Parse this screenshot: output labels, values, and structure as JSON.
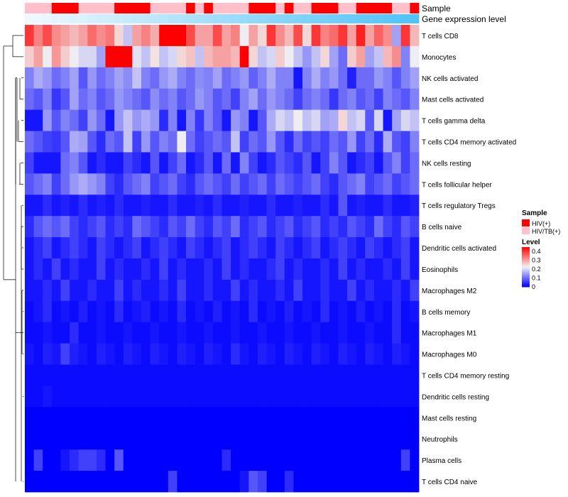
{
  "chart_data": {
    "type": "heatmap",
    "title": "",
    "annotation_labels": {
      "sample": "Sample",
      "gene_expression": "Gene expression level"
    },
    "rows": [
      "T cells CD8",
      "Monocytes",
      "NK cells activated",
      "Mast cells activated",
      "T cells gamma delta",
      "T cells CD4 memory activated",
      "NK cells resting",
      "T cells follicular helper",
      "T cells regulatory  Tregs",
      "B cells naive",
      "Dendritic cells activated",
      "Eosinophils",
      "Macrophages M2",
      "B cells memory",
      "Macrophages M1",
      "Macrophages M0",
      "T cells CD4 memory resting",
      "Dendritic cells resting",
      "Mast cells resting",
      "Neutrophils",
      "Plasma cells",
      "T cells CD4 naive"
    ],
    "n_samples": 44,
    "sample_groups": [
      "HIV/TB(+)",
      "HIV/TB(+)",
      "HIV/TB(+)",
      "HIV(+)",
      "HIV(+)",
      "HIV(+)",
      "HIV/TB(+)",
      "HIV/TB(+)",
      "HIV/TB(+)",
      "HIV/TB(+)",
      "HIV(+)",
      "HIV(+)",
      "HIV(+)",
      "HIV(+)",
      "HIV/TB(+)",
      "HIV/TB(+)",
      "HIV/TB(+)",
      "HIV/TB(+)",
      "HIV(+)",
      "HIV/TB(+)",
      "HIV(+)",
      "HIV/TB(+)",
      "HIV/TB(+)",
      "HIV/TB(+)",
      "HIV/TB(+)",
      "HIV(+)",
      "HIV(+)",
      "HIV(+)",
      "HIV/TB(+)",
      "HIV(+)",
      "HIV/TB(+)",
      "HIV/TB(+)",
      "HIV(+)",
      "HIV(+)",
      "HIV(+)",
      "HIV/TB(+)",
      "HIV/TB(+)",
      "HIV(+)",
      "HIV(+)",
      "HIV(+)",
      "HIV(+)",
      "HIV/TB(+)",
      "HIV/TB(+)",
      "HIV(+)"
    ],
    "expression_gradient": [
      "#f0f8ff",
      "#4fc3f7"
    ],
    "color_scale": {
      "low": "#0000ff",
      "mid": "#f2f2f2",
      "high": "#ff0000",
      "range": [
        0,
        0.45
      ]
    },
    "legend": {
      "sample_title": "Sample",
      "sample_items": [
        {
          "label": "HIV(+)",
          "color": "#ff0000"
        },
        {
          "label": "HIV/TB(+)",
          "color": "#ffc0cb"
        }
      ],
      "level_title": "Level",
      "level_ticks": [
        {
          "value": 0.4,
          "label": "0.4"
        },
        {
          "value": 0.3,
          "label": "0.3"
        },
        {
          "value": 0.2,
          "label": "0.2"
        },
        {
          "value": 0.1,
          "label": "0.1"
        },
        {
          "value": 0,
          "label": "0"
        }
      ]
    },
    "values": [
      [
        0.4,
        0.33,
        0.38,
        0.32,
        0.3,
        0.28,
        0.3,
        0.35,
        0.32,
        0.34,
        0.25,
        0.18,
        0.3,
        0.33,
        0.29,
        0.45,
        0.45,
        0.45,
        0.38,
        0.3,
        0.3,
        0.38,
        0.3,
        0.33,
        0.22,
        0.3,
        0.25,
        0.4,
        0.32,
        0.28,
        0.38,
        0.25,
        0.4,
        0.33,
        0.35,
        0.4,
        0.3,
        0.42,
        0.3,
        0.36,
        0.32,
        0.15,
        0.4,
        0.28
      ],
      [
        0.26,
        0.3,
        0.22,
        0.31,
        0.26,
        0.22,
        0.2,
        0.2,
        0.15,
        0.45,
        0.45,
        0.45,
        0.21,
        0.18,
        0.24,
        0.18,
        0.2,
        0.25,
        0.27,
        0.18,
        0.28,
        0.3,
        0.3,
        0.28,
        0.45,
        0.25,
        0.18,
        0.2,
        0.26,
        0.22,
        0.18,
        0.14,
        0.18,
        0.25,
        0.15,
        0.1,
        0.26,
        0.3,
        0.15,
        0.18,
        0.28,
        0.32,
        0.12,
        0.22
      ],
      [
        0.12,
        0.16,
        0.14,
        0.1,
        0.12,
        0.15,
        0.08,
        0.14,
        0.1,
        0.12,
        0.15,
        0.13,
        0.18,
        0.12,
        0.1,
        0.14,
        0.16,
        0.12,
        0.1,
        0.13,
        0.12,
        0.15,
        0.1,
        0.12,
        0.14,
        0.09,
        0.12,
        0.16,
        0.12,
        0.12,
        0.02,
        0.12,
        0.16,
        0.12,
        0.14,
        0.1,
        0.03,
        0.1,
        0.1,
        0.14,
        0.12,
        0.08,
        0.12,
        0.15
      ],
      [
        0.1,
        0.08,
        0.12,
        0.05,
        0.08,
        0.15,
        0.1,
        0.12,
        0.08,
        0.1,
        0.14,
        0.12,
        0.1,
        0.08,
        0.13,
        0.1,
        0.12,
        0.08,
        0.1,
        0.14,
        0.12,
        0.08,
        0.1,
        0.06,
        0.12,
        0.15,
        0.1,
        0.14,
        0.12,
        0.1,
        0.06,
        0.1,
        0.12,
        0.1,
        0.05,
        0.1,
        0.12,
        0.08,
        0.1,
        0.06,
        0.12,
        0.1,
        0.08,
        0.12
      ],
      [
        0.02,
        0.02,
        0.14,
        0.08,
        0.12,
        0.1,
        0.06,
        0.14,
        0.1,
        0.02,
        0.14,
        0.18,
        0.14,
        0.16,
        0.14,
        0.04,
        0.12,
        0.02,
        0.12,
        0.05,
        0.12,
        0.08,
        0.02,
        0.14,
        0.12,
        0.02,
        0.08,
        0.16,
        0.2,
        0.18,
        0.22,
        0.18,
        0.2,
        0.15,
        0.16,
        0.25,
        0.18,
        0.2,
        0.08,
        0.2,
        0.02,
        0.15,
        0.2,
        0.18
      ],
      [
        0.1,
        0.08,
        0.06,
        0.05,
        0.08,
        0.16,
        0.15,
        0.08,
        0.04,
        0.1,
        0.08,
        0.18,
        0.06,
        0.14,
        0.08,
        0.12,
        0.1,
        0.22,
        0.1,
        0.06,
        0.08,
        0.1,
        0.08,
        0.18,
        0.06,
        0.1,
        0.08,
        0.14,
        0.08,
        0.04,
        0.1,
        0.06,
        0.08,
        0.06,
        0.1,
        0.08,
        0.14,
        0.06,
        0.1,
        0.04,
        0.16,
        0.08,
        0.06,
        0.12
      ],
      [
        0.06,
        0.02,
        0.02,
        0.02,
        0.1,
        0.12,
        0.08,
        0.02,
        0.04,
        0.02,
        0.02,
        0.06,
        0.04,
        0.02,
        0.08,
        0.02,
        0.06,
        0.1,
        0.02,
        0.04,
        0.08,
        0.02,
        0.1,
        0.02,
        0.12,
        0.06,
        0.02,
        0.04,
        0.08,
        0.06,
        0.04,
        0.08,
        0.02,
        0.06,
        0.12,
        0.08,
        0.02,
        0.04,
        0.06,
        0.02,
        0.08,
        0.12,
        0.06,
        0.1
      ],
      [
        0.08,
        0.1,
        0.12,
        0.06,
        0.1,
        0.14,
        0.16,
        0.14,
        0.12,
        0.06,
        0.04,
        0.08,
        0.1,
        0.12,
        0.06,
        0.08,
        0.1,
        0.06,
        0.04,
        0.08,
        0.1,
        0.08,
        0.06,
        0.1,
        0.06,
        0.08,
        0.1,
        0.06,
        0.1,
        0.08,
        0.06,
        0.08,
        0.1,
        0.06,
        0.04,
        0.08,
        0.1,
        0.12,
        0.06,
        0.08,
        0.1,
        0.06,
        0.08,
        0.1
      ],
      [
        0.02,
        0.02,
        0.04,
        0.02,
        0.03,
        0.02,
        0.04,
        0.02,
        0.03,
        0.02,
        0.04,
        0.02,
        0.02,
        0.03,
        0.02,
        0.02,
        0.04,
        0.02,
        0.02,
        0.03,
        0.02,
        0.04,
        0.02,
        0.02,
        0.03,
        0.02,
        0.02,
        0.04,
        0.02,
        0.02,
        0.03,
        0.02,
        0.02,
        0.04,
        0.02,
        0.08,
        0.02,
        0.03,
        0.02,
        0.02,
        0.04,
        0.02,
        0.02,
        0.03
      ],
      [
        0.04,
        0.08,
        0.1,
        0.08,
        0.1,
        0.06,
        0.04,
        0.06,
        0.08,
        0.04,
        0.06,
        0.04,
        0.1,
        0.08,
        0.06,
        0.04,
        0.08,
        0.06,
        0.1,
        0.06,
        0.04,
        0.08,
        0.06,
        0.1,
        0.04,
        0.06,
        0.08,
        0.04,
        0.06,
        0.08,
        0.04,
        0.06,
        0.08,
        0.04,
        0.06,
        0.04,
        0.08,
        0.06,
        0.04,
        0.1,
        0.06,
        0.04,
        0.08,
        0.06
      ],
      [
        0.02,
        0.04,
        0.06,
        0.02,
        0.04,
        0.06,
        0.04,
        0.02,
        0.06,
        0.04,
        0.02,
        0.04,
        0.06,
        0.02,
        0.04,
        0.06,
        0.04,
        0.02,
        0.06,
        0.04,
        0.02,
        0.04,
        0.06,
        0.02,
        0.04,
        0.06,
        0.04,
        0.02,
        0.06,
        0.04,
        0.02,
        0.04,
        0.06,
        0.02,
        0.04,
        0.06,
        0.04,
        0.02,
        0.06,
        0.04,
        0.02,
        0.04,
        0.06,
        0.02
      ],
      [
        0.02,
        0.04,
        0.02,
        0.06,
        0.02,
        0.04,
        0.02,
        0.02,
        0.06,
        0.02,
        0.04,
        0.02,
        0.02,
        0.04,
        0.02,
        0.06,
        0.02,
        0.04,
        0.02,
        0.02,
        0.04,
        0.02,
        0.06,
        0.02,
        0.04,
        0.02,
        0.02,
        0.04,
        0.06,
        0.02,
        0.04,
        0.02,
        0.02,
        0.04,
        0.02,
        0.06,
        0.02,
        0.04,
        0.02,
        0.02,
        0.04,
        0.02,
        0.06,
        0.02
      ],
      [
        0.02,
        0.02,
        0.04,
        0.02,
        0.06,
        0.02,
        0.02,
        0.04,
        0.02,
        0.02,
        0.06,
        0.02,
        0.04,
        0.02,
        0.02,
        0.04,
        0.02,
        0.06,
        0.02,
        0.02,
        0.04,
        0.02,
        0.02,
        0.06,
        0.02,
        0.04,
        0.02,
        0.02,
        0.04,
        0.02,
        0.06,
        0.02,
        0.02,
        0.04,
        0.02,
        0.02,
        0.06,
        0.02,
        0.04,
        0.02,
        0.02,
        0.04,
        0.02,
        0.06
      ],
      [
        0.01,
        0.02,
        0.04,
        0.01,
        0.02,
        0.01,
        0.03,
        0.01,
        0.02,
        0.01,
        0.04,
        0.01,
        0.02,
        0.03,
        0.01,
        0.02,
        0.01,
        0.04,
        0.01,
        0.02,
        0.01,
        0.03,
        0.01,
        0.02,
        0.01,
        0.04,
        0.01,
        0.02,
        0.01,
        0.03,
        0.01,
        0.02,
        0.01,
        0.04,
        0.01,
        0.02,
        0.01,
        0.03,
        0.01,
        0.02,
        0.01,
        0.04,
        0.01,
        0.02
      ],
      [
        0.01,
        0.01,
        0.02,
        0.01,
        0.01,
        0.04,
        0.01,
        0.01,
        0.02,
        0.01,
        0.01,
        0.02,
        0.01,
        0.01,
        0.02,
        0.01,
        0.01,
        0.02,
        0.01,
        0.01,
        0.02,
        0.01,
        0.01,
        0.02,
        0.01,
        0.01,
        0.02,
        0.01,
        0.01,
        0.02,
        0.01,
        0.01,
        0.02,
        0.01,
        0.01,
        0.02,
        0.01,
        0.01,
        0.02,
        0.01,
        0.01,
        0.04,
        0.01,
        0.01
      ],
      [
        0.02,
        0.01,
        0.03,
        0.02,
        0.06,
        0.03,
        0.02,
        0.01,
        0.03,
        0.02,
        0.01,
        0.03,
        0.02,
        0.01,
        0.03,
        0.02,
        0.01,
        0.03,
        0.02,
        0.01,
        0.03,
        0.02,
        0.01,
        0.04,
        0.02,
        0.01,
        0.03,
        0.02,
        0.01,
        0.03,
        0.02,
        0.01,
        0.03,
        0.02,
        0.01,
        0.03,
        0.02,
        0.01,
        0.03,
        0.02,
        0.01,
        0.03,
        0.02,
        0.01
      ],
      [
        0.01,
        0.01,
        0.01,
        0.01,
        0.01,
        0.01,
        0.01,
        0.01,
        0.01,
        0.01,
        0.01,
        0.01,
        0.01,
        0.01,
        0.01,
        0.01,
        0.01,
        0.01,
        0.01,
        0.01,
        0.01,
        0.01,
        0.01,
        0.01,
        0.01,
        0.01,
        0.01,
        0.01,
        0.01,
        0.01,
        0.01,
        0.01,
        0.01,
        0.01,
        0.01,
        0.01,
        0.01,
        0.01,
        0.01,
        0.01,
        0.01,
        0.01,
        0.01,
        0.01
      ],
      [
        0.01,
        0.01,
        0.02,
        0.01,
        0.01,
        0.01,
        0.01,
        0.01,
        0.01,
        0.01,
        0.01,
        0.01,
        0.01,
        0.01,
        0.01,
        0.01,
        0.01,
        0.01,
        0.01,
        0.01,
        0.01,
        0.01,
        0.01,
        0.01,
        0.01,
        0.01,
        0.01,
        0.01,
        0.01,
        0.01,
        0.01,
        0.01,
        0.01,
        0.01,
        0.01,
        0.01,
        0.01,
        0.01,
        0.01,
        0.01,
        0.01,
        0.01,
        0.01,
        0.01
      ],
      [
        0.0,
        0.0,
        0.0,
        0.0,
        0.0,
        0.0,
        0.0,
        0.0,
        0.0,
        0.0,
        0.0,
        0.0,
        0.0,
        0.0,
        0.0,
        0.0,
        0.0,
        0.0,
        0.0,
        0.0,
        0.0,
        0.0,
        0.0,
        0.0,
        0.0,
        0.0,
        0.0,
        0.0,
        0.0,
        0.0,
        0.0,
        0.0,
        0.0,
        0.0,
        0.0,
        0.0,
        0.0,
        0.0,
        0.0,
        0.0,
        0.0,
        0.0,
        0.0,
        0.0
      ],
      [
        0.0,
        0.0,
        0.0,
        0.0,
        0.0,
        0.0,
        0.0,
        0.0,
        0.0,
        0.0,
        0.0,
        0.0,
        0.0,
        0.0,
        0.0,
        0.0,
        0.0,
        0.0,
        0.0,
        0.0,
        0.0,
        0.0,
        0.0,
        0.0,
        0.0,
        0.0,
        0.0,
        0.0,
        0.0,
        0.0,
        0.0,
        0.0,
        0.0,
        0.0,
        0.0,
        0.0,
        0.0,
        0.0,
        0.0,
        0.0,
        0.0,
        0.0,
        0.0,
        0.0
      ],
      [
        0.0,
        0.06,
        0.0,
        0.0,
        0.02,
        0.04,
        0.06,
        0.06,
        0.04,
        0.0,
        0.08,
        0.0,
        0.0,
        0.0,
        0.0,
        0.0,
        0.0,
        0.0,
        0.0,
        0.0,
        0.0,
        0.0,
        0.04,
        0.0,
        0.0,
        0.0,
        0.0,
        0.0,
        0.0,
        0.0,
        0.0,
        0.0,
        0.0,
        0.0,
        0.0,
        0.0,
        0.0,
        0.0,
        0.0,
        0.0,
        0.0,
        0.0,
        0.06,
        0.0
      ],
      [
        0.0,
        0.0,
        0.0,
        0.0,
        0.0,
        0.0,
        0.0,
        0.0,
        0.0,
        0.0,
        0.0,
        0.0,
        0.0,
        0.0,
        0.0,
        0.0,
        0.06,
        0.0,
        0.0,
        0.0,
        0.0,
        0.0,
        0.0,
        0.0,
        0.02,
        0.08,
        0.06,
        0.0,
        0.0,
        0.04,
        0.0,
        0.0,
        0.0,
        0.0,
        0.0,
        0.0,
        0.0,
        0.0,
        0.0,
        0.0,
        0.0,
        0.0,
        0.0,
        0.0
      ]
    ]
  }
}
